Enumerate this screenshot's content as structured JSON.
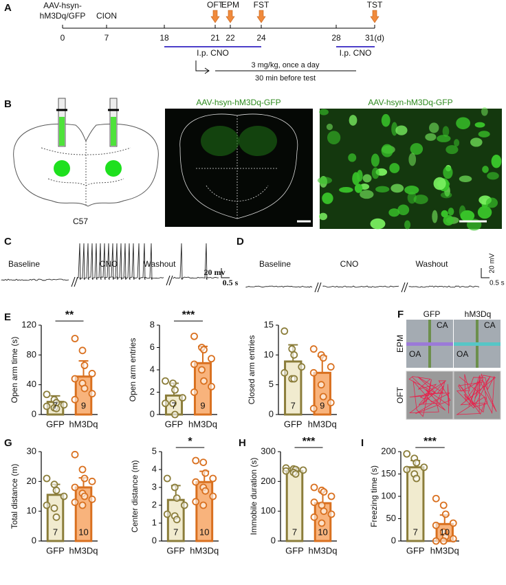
{
  "panel_labels": [
    "A",
    "B",
    "C",
    "D",
    "E",
    "F",
    "G",
    "H",
    "I"
  ],
  "panel_b": {
    "titles": [
      "AAV-hsyn-hM3Dq-GFP",
      "AAV-hsyn-hM3Dq-GFP"
    ],
    "strain": "C57"
  },
  "panel_c": {
    "phases": [
      "Baseline",
      "CNO",
      "Washout"
    ],
    "scale_v": "20 mv",
    "scale_t": "0.5 s"
  },
  "panel_d": {
    "phases": [
      "Baseline",
      "CNO",
      "Washout"
    ],
    "scale_v": "20 mV",
    "scale_t": "0.5 s"
  },
  "panel_f": {
    "columns": [
      "GFP",
      "hM3Dq"
    ],
    "rows": [
      "EPM",
      "OFT"
    ],
    "arms": [
      "CA",
      "OA"
    ]
  },
  "chart_data": [
    {
      "type": "timeline",
      "xlim": [
        0,
        31
      ],
      "xticks": [
        0,
        7,
        18,
        21,
        22,
        24,
        28,
        {
          "value": 31,
          "label": "31(d)"
        }
      ],
      "events": [
        {
          "label": [
            "AAV-hsyn-",
            "hM3Dq/GFP"
          ],
          "day": 0
        },
        {
          "label": [
            "CION"
          ],
          "day": 7
        }
      ],
      "tests": [
        {
          "label": "OFT",
          "day": 21
        },
        {
          "label": "EPM",
          "day": 22
        },
        {
          "label": "FST",
          "day": 24
        },
        {
          "label": "TST",
          "day": 31
        }
      ],
      "treatments": [
        {
          "label": "I.p. CNO",
          "start": 18,
          "end": 24
        },
        {
          "label": "I.p. CNO",
          "start": 28,
          "end": 31
        }
      ],
      "dosing": [
        "3 mg/kg, once a day",
        "30 min before test"
      ]
    },
    {
      "type": "bar",
      "ylabel": "Open arm time (s)",
      "categories": [
        "GFP",
        "hM3Dq"
      ],
      "values": [
        17,
        51
      ],
      "errors": [
        8,
        21
      ],
      "points": [
        [
          27,
          20,
          16,
          13,
          11,
          9,
          8
        ],
        [
          102,
          86,
          66,
          55,
          48,
          42,
          35,
          28,
          20
        ]
      ],
      "n": [
        7,
        9
      ],
      "significance": "**",
      "ylim": [
        0,
        120
      ],
      "yticks": [
        0,
        40,
        80,
        120
      ],
      "colors": [
        "#8b7d3a",
        "#d9701f"
      ],
      "fills": [
        "#f1ebcf",
        "#f8b37c"
      ]
    },
    {
      "type": "bar",
      "ylabel": "Open arm entries",
      "categories": [
        "GFP",
        "hM3Dq"
      ],
      "values": [
        1.7,
        4.6
      ],
      "errors": [
        1.1,
        1.5
      ],
      "points": [
        [
          3,
          2.8,
          2.2,
          1.5,
          1,
          1,
          0
        ],
        [
          7,
          6,
          5.8,
          5,
          4.5,
          4,
          3,
          2.5,
          2
        ]
      ],
      "n": [
        7,
        9
      ],
      "significance": "***",
      "ylim": [
        0,
        8
      ],
      "yticks": [
        0,
        2,
        4,
        6,
        8
      ],
      "colors": [
        "#8b7d3a",
        "#d9701f"
      ],
      "fills": [
        "#f1ebcf",
        "#f8b37c"
      ]
    },
    {
      "type": "bar",
      "ylabel": "Closed arm entries",
      "categories": [
        "GFP",
        "hM3Dq"
      ],
      "values": [
        8.9,
        7
      ],
      "errors": [
        2.8,
        2.8
      ],
      "points": [
        [
          14,
          11,
          10,
          8,
          7,
          6,
          6
        ],
        [
          11,
          10,
          9.5,
          8,
          7,
          5,
          3,
          2,
          1
        ]
      ],
      "n": [
        7,
        9
      ],
      "ylim": [
        0,
        15
      ],
      "yticks": [
        0,
        5,
        10,
        15
      ],
      "colors": [
        "#8b7d3a",
        "#d9701f"
      ],
      "fills": [
        "#f1ebcf",
        "#f8b37c"
      ]
    },
    {
      "type": "bar",
      "ylabel": "Total distance (m)",
      "categories": [
        "GFP",
        "hM3Dq"
      ],
      "values": [
        15.5,
        18
      ],
      "errors": [
        3.5,
        3.2
      ],
      "points": [
        [
          21,
          19,
          17,
          15,
          12,
          11,
          8
        ],
        [
          29,
          24,
          21,
          20,
          18,
          16,
          15,
          14,
          13,
          12
        ]
      ],
      "n": [
        7,
        10
      ],
      "ylim": [
        0,
        30
      ],
      "yticks": [
        0,
        10,
        20,
        30
      ],
      "colors": [
        "#8b7d3a",
        "#d9701f"
      ],
      "fills": [
        "#f1ebcf",
        "#f8b37c"
      ]
    },
    {
      "type": "bar",
      "ylabel": "Center distance (m)",
      "categories": [
        "GFP",
        "hM3Dq"
      ],
      "values": [
        2.3,
        3.3
      ],
      "errors": [
        0.8,
        0.6
      ],
      "points": [
        [
          3.5,
          3,
          2.4,
          2,
          1.5,
          1.4,
          1.2
        ],
        [
          4.5,
          4.4,
          3.8,
          3.5,
          3.3,
          3,
          2.8,
          2.5,
          2.2,
          2
        ]
      ],
      "n": [
        7,
        10
      ],
      "significance": "*",
      "ylim": [
        0,
        5
      ],
      "yticks": [
        0,
        1,
        2,
        3,
        4,
        5
      ],
      "colors": [
        "#8b7d3a",
        "#d9701f"
      ],
      "fills": [
        "#f1ebcf",
        "#f8b37c"
      ]
    },
    {
      "type": "bar",
      "ylabel": "Immobile duration (s)",
      "categories": [
        "GFP",
        "hM3Dq"
      ],
      "values": [
        235,
        127
      ],
      "errors": [
        10,
        40
      ],
      "points": [
        [
          245,
          242,
          240,
          238,
          235,
          230,
          225
        ],
        [
          180,
          170,
          165,
          150,
          130,
          120,
          100,
          90,
          80,
          60
        ]
      ],
      "n": [
        7,
        10
      ],
      "significance": "***",
      "ylim": [
        0,
        300
      ],
      "yticks": [
        0,
        100,
        200,
        300
      ],
      "colors": [
        "#8b7d3a",
        "#d9701f"
      ],
      "fills": [
        "#f1ebcf",
        "#f8b37c"
      ]
    },
    {
      "type": "bar",
      "ylabel": "Freezing time (s)",
      "categories": [
        "GFP",
        "hM3Dq"
      ],
      "values": [
        165,
        38
      ],
      "errors": [
        15,
        20
      ],
      "points": [
        [
          195,
          185,
          175,
          165,
          160,
          150,
          140
        ],
        [
          95,
          80,
          60,
          40,
          35,
          20,
          10,
          5,
          0,
          0
        ]
      ],
      "n": [
        7,
        10
      ],
      "significance": "***",
      "ylim": [
        0,
        200
      ],
      "yticks": [
        0,
        50,
        100,
        150,
        200
      ],
      "colors": [
        "#8b7d3a",
        "#d9701f"
      ],
      "fills": [
        "#f1ebcf",
        "#f8b37c"
      ]
    }
  ]
}
